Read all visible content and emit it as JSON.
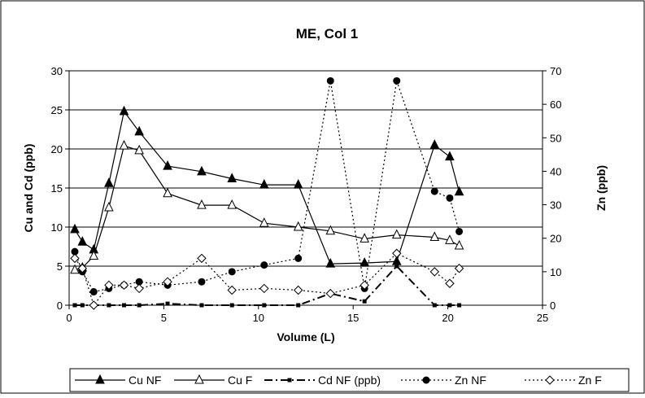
{
  "chart_data": {
    "type": "line",
    "title": "ME, Col 1",
    "xlabel": "Volume (L)",
    "ylabel_left": "Cu and Cd (ppb)",
    "ylabel_right": "Zn (ppb)",
    "xlim": [
      0,
      25
    ],
    "ylim_left": [
      0,
      30
    ],
    "ylim_right": [
      0,
      70
    ],
    "x_ticks": [
      "0",
      "5",
      "10",
      "15",
      "20",
      "25"
    ],
    "y_left_ticks": [
      "0",
      "5",
      "10",
      "15",
      "20",
      "25",
      "30"
    ],
    "y_right_ticks": [
      "0",
      "10",
      "20",
      "30",
      "40",
      "50",
      "60",
      "70"
    ],
    "grid": "horizontal, left axis major ticks",
    "legend_position": "bottom",
    "series": [
      {
        "name": "Cu NF",
        "axis": "left",
        "style": "solid",
        "marker": "triangle-filled",
        "x": [
          0.3,
          0.7,
          1.3,
          2.1,
          2.9,
          3.7,
          5.2,
          7.0,
          8.6,
          10.3,
          12.1,
          13.8,
          15.6,
          17.3,
          19.3,
          20.1,
          20.6
        ],
        "y": [
          9.7,
          8.1,
          7.1,
          15.6,
          24.8,
          22.2,
          17.8,
          17.1,
          16.2,
          15.4,
          15.4,
          5.3,
          5.4,
          5.6,
          20.5,
          19.0,
          14.5
        ]
      },
      {
        "name": "Cu F",
        "axis": "left",
        "style": "solid",
        "marker": "triangle-open",
        "x": [
          0.3,
          0.7,
          1.3,
          2.1,
          2.9,
          3.7,
          5.2,
          7.0,
          8.6,
          10.3,
          12.1,
          13.8,
          15.6,
          17.3,
          19.3,
          20.1,
          20.6
        ],
        "y": [
          4.5,
          4.8,
          6.3,
          12.5,
          20.4,
          19.8,
          14.3,
          12.8,
          12.8,
          10.5,
          10.0,
          9.5,
          8.5,
          9.0,
          8.7,
          8.3,
          7.6
        ]
      },
      {
        "name": "Cd NF (ppb)",
        "axis": "left",
        "style": "dash-dot",
        "marker": "square-filled",
        "x": [
          0.3,
          0.7,
          1.3,
          2.1,
          2.9,
          3.7,
          5.2,
          7.0,
          8.6,
          10.3,
          12.1,
          13.8,
          15.6,
          17.3,
          19.3,
          20.1,
          20.6
        ],
        "y": [
          0.0,
          0.0,
          0.0,
          0.0,
          0.0,
          0.0,
          0.2,
          0.0,
          0.0,
          0.0,
          0.0,
          1.5,
          0.5,
          5.0,
          0.0,
          0.0,
          0.0
        ]
      },
      {
        "name": "Zn NF",
        "axis": "right",
        "style": "dotted",
        "marker": "circle-filled",
        "x": [
          0.3,
          0.7,
          1.3,
          2.1,
          2.9,
          3.7,
          5.2,
          7.0,
          8.6,
          10.3,
          12.1,
          13.8,
          15.6,
          17.3,
          19.3,
          20.1,
          20.6
        ],
        "y": [
          16,
          10,
          4,
          5,
          6,
          7,
          6,
          7,
          10,
          12,
          14,
          67,
          5,
          67,
          34,
          32,
          22
        ]
      },
      {
        "name": "Zn F",
        "axis": "right",
        "style": "dotted",
        "marker": "diamond-open",
        "x": [
          0.3,
          0.7,
          1.3,
          2.1,
          2.9,
          3.7,
          5.2,
          7.0,
          8.6,
          10.3,
          12.1,
          13.8,
          15.6,
          17.3,
          19.3,
          20.1,
          20.6
        ],
        "y": [
          14,
          11,
          0,
          6,
          6,
          5,
          7,
          14,
          4.5,
          5,
          4.5,
          3.5,
          6,
          15.5,
          10,
          6.5,
          11
        ]
      }
    ]
  }
}
